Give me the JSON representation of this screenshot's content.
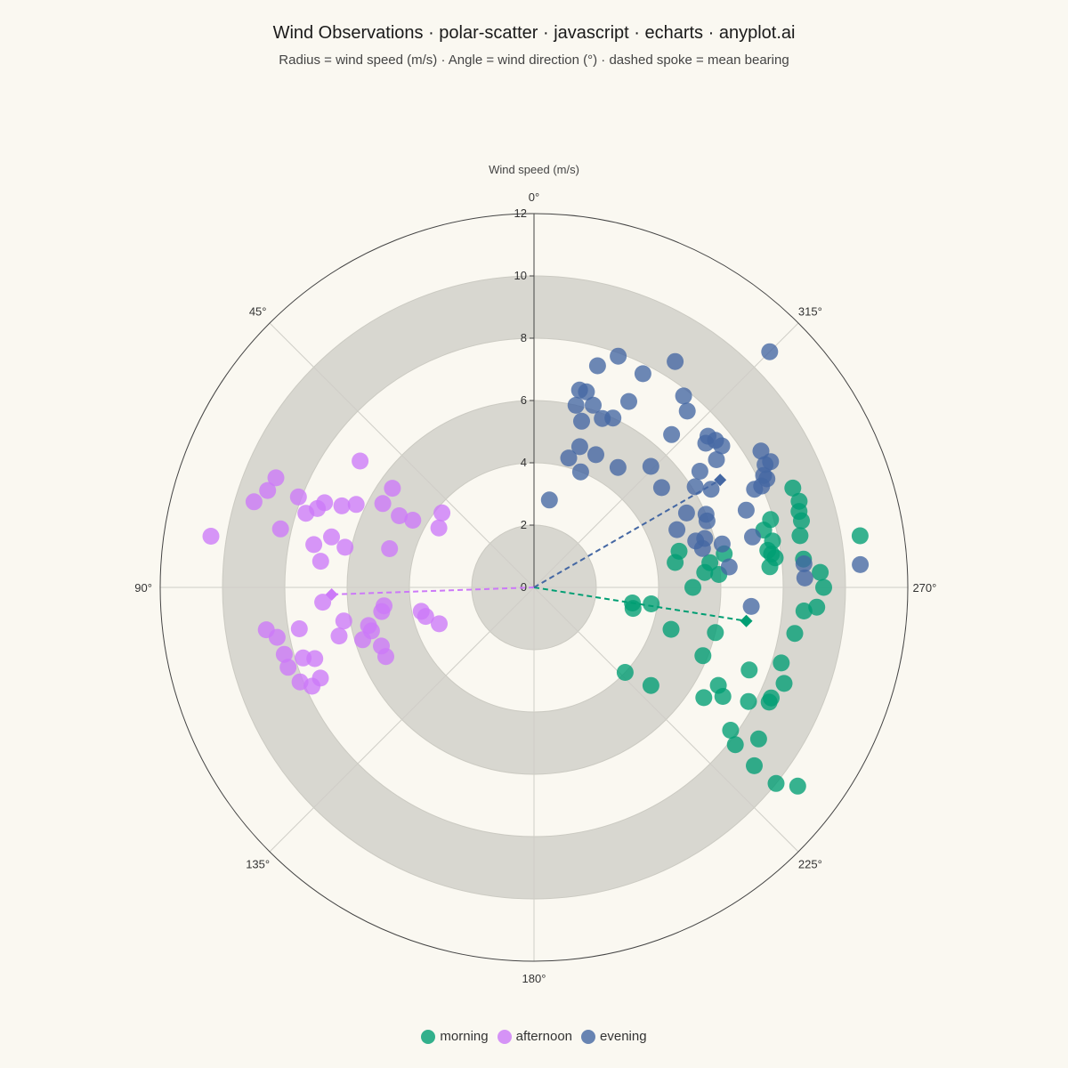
{
  "chart_data": {
    "type": "scatter",
    "coordinate_system": "polar",
    "title": "Wind Observations · polar-scatter · javascript · echarts · anyplot.ai",
    "subtitle": "Radius = wind speed (m/s) · Angle = wind direction (°) · dashed spoke = mean bearing",
    "radius_axis": {
      "name": "Wind speed (m/s)",
      "range": [
        0,
        12
      ],
      "ticks": [
        "0",
        "2",
        "4",
        "6",
        "8",
        "10",
        "12"
      ],
      "split_area_alternating": true
    },
    "angle_axis": {
      "range": [
        0,
        360
      ],
      "start_angle": 0,
      "direction": "counterclockwise",
      "ticks": [
        "0°",
        "45°",
        "90°",
        "135°",
        "180°",
        "225°",
        "270°",
        "315°"
      ],
      "grid": true
    },
    "legend": {
      "position": "bottom-center"
    },
    "series": [
      {
        "name": "morning",
        "color": "#009E73",
        "mean": {
          "direction": 261,
          "speed": 6.9
        },
        "points": [
          [
            284,
            8.85
          ],
          [
            279,
            10.6
          ],
          [
            273,
            9.2
          ],
          [
            276,
            8.7
          ],
          [
            270,
            9.3
          ],
          [
            281,
            8.7
          ],
          [
            265,
            8.7
          ],
          [
            266,
            9.1
          ],
          [
            260,
            8.5
          ],
          [
            253,
            8.3
          ],
          [
            249,
            8.6
          ],
          [
            286,
            8.85
          ],
          [
            288,
            8.95
          ],
          [
            291,
            8.9
          ],
          [
            281,
            7.8
          ],
          [
            286,
            7.9
          ],
          [
            284,
            7.6
          ],
          [
            278,
            7.7
          ],
          [
            279,
            7.6
          ],
          [
            277,
            7.8
          ],
          [
            275,
            7.6
          ],
          [
            280,
            6.2
          ],
          [
            278,
            5.7
          ],
          [
            275,
            5.5
          ],
          [
            284,
            4.8
          ],
          [
            280,
            4.6
          ],
          [
            274,
            5.95
          ],
          [
            270,
            5.1
          ],
          [
            258,
            3.25
          ],
          [
            261,
            3.2
          ],
          [
            262,
            3.8
          ],
          [
            253,
            4.6
          ],
          [
            256,
            6.0
          ],
          [
            248,
            5.85
          ],
          [
            249,
            7.4
          ],
          [
            242,
            6.7
          ],
          [
            240,
            7.0
          ],
          [
            234,
            7.8
          ],
          [
            245,
            8.4
          ],
          [
            236,
            8.7
          ],
          [
            232,
            8.2
          ],
          [
            231,
            9.1
          ],
          [
            231,
            10.0
          ],
          [
            233,
            10.6
          ],
          [
            244,
            8.4
          ],
          [
            242,
            7.8
          ],
          [
            237,
            6.5
          ],
          [
            227,
            4.0
          ],
          [
            230,
            4.9
          ]
        ]
      },
      {
        "name": "afternoon",
        "color": "#CC79F8",
        "mean": {
          "direction": 92,
          "speed": 6.5
        },
        "points": [
          [
            81,
            10.5
          ],
          [
            68,
            7.25
          ],
          [
            69,
            8.1
          ],
          [
            72,
            7.7
          ],
          [
            79,
            7.2
          ],
          [
            70,
            7.4
          ],
          [
            54,
            6.9
          ],
          [
            67,
            9.0
          ],
          [
            70,
            9.1
          ],
          [
            73,
            9.4
          ],
          [
            77,
            8.35
          ],
          [
            65,
            6.3
          ],
          [
            62,
            4.9
          ],
          [
            55,
            5.55
          ],
          [
            61,
            5.55
          ],
          [
            67,
            6.7
          ],
          [
            83,
            6.9
          ],
          [
            78,
            6.2
          ],
          [
            76,
            6.7
          ],
          [
            58,
            3.6
          ],
          [
            61,
            4.45
          ],
          [
            75,
            4.8
          ],
          [
            51,
            3.8
          ],
          [
            94,
            6.8
          ],
          [
            99,
            8.7
          ],
          [
            101,
            8.4
          ],
          [
            105,
            8.3
          ],
          [
            108,
            8.3
          ],
          [
            100,
            7.65
          ],
          [
            108,
            7.4
          ],
          [
            107,
            7.75
          ],
          [
            112,
            8.1
          ],
          [
            114,
            7.8
          ],
          [
            113,
            7.45
          ],
          [
            104,
            6.45
          ],
          [
            100,
            6.2
          ],
          [
            99,
            4.95
          ],
          [
            103,
            5.45
          ],
          [
            105,
            5.4
          ],
          [
            107,
            5.75
          ],
          [
            111,
            5.25
          ],
          [
            115,
            5.25
          ],
          [
            105,
            3.6
          ],
          [
            102,
            3.7
          ],
          [
            111,
            3.26
          ],
          [
            97,
            4.85
          ]
        ]
      },
      {
        "name": "evening",
        "color": "#4467A3",
        "mean": {
          "direction": 300,
          "speed": 6.9
        },
        "points": [
          [
            315,
            10.7
          ],
          [
            328,
            8.55
          ],
          [
            340,
            7.9
          ],
          [
            344,
            7.4
          ],
          [
            333,
            7.7
          ],
          [
            322,
            7.8
          ],
          [
            319,
            7.5
          ],
          [
            333,
            6.7
          ],
          [
            345,
            6.5
          ],
          [
            347,
            6.5
          ],
          [
            347,
            6.0
          ],
          [
            342,
            6.15
          ],
          [
            344,
            5.55
          ],
          [
            342,
            4.75
          ],
          [
            338,
            5.85
          ],
          [
            335,
            6.0
          ],
          [
            345,
            4.3
          ],
          [
            307,
            7.55
          ],
          [
            309,
            7.5
          ],
          [
            318,
            6.6
          ],
          [
            310,
            7.2
          ],
          [
            311,
            7.4
          ],
          [
            305,
            7.15
          ],
          [
            305,
            6.5
          ],
          [
            298,
            8.4
          ],
          [
            298,
            8.6
          ],
          [
            301,
            8.5
          ],
          [
            295,
            8.25
          ],
          [
            294,
            8.0
          ],
          [
            296,
            8.2
          ],
          [
            294,
            7.75
          ],
          [
            283,
            7.2
          ],
          [
            274,
            10.5
          ],
          [
            275,
            8.7
          ],
          [
            272,
            8.7
          ],
          [
            290,
            7.25
          ],
          [
            299,
            6.5
          ],
          [
            302,
            6.1
          ],
          [
            293,
            6.0
          ],
          [
            291,
            5.95
          ],
          [
            296,
            5.45
          ],
          [
            292,
            4.95
          ],
          [
            286,
            5.7
          ],
          [
            286,
            5.4
          ],
          [
            283,
            5.55
          ],
          [
            283,
            6.2
          ],
          [
            276,
            6.3
          ],
          [
            265,
            7.0
          ],
          [
            308,
            5.2
          ],
          [
            316,
            5.4
          ],
          [
            325,
            4.7
          ],
          [
            335,
            4.7
          ],
          [
            338,
            4.0
          ],
          [
            350,
            2.85
          ]
        ]
      }
    ]
  }
}
